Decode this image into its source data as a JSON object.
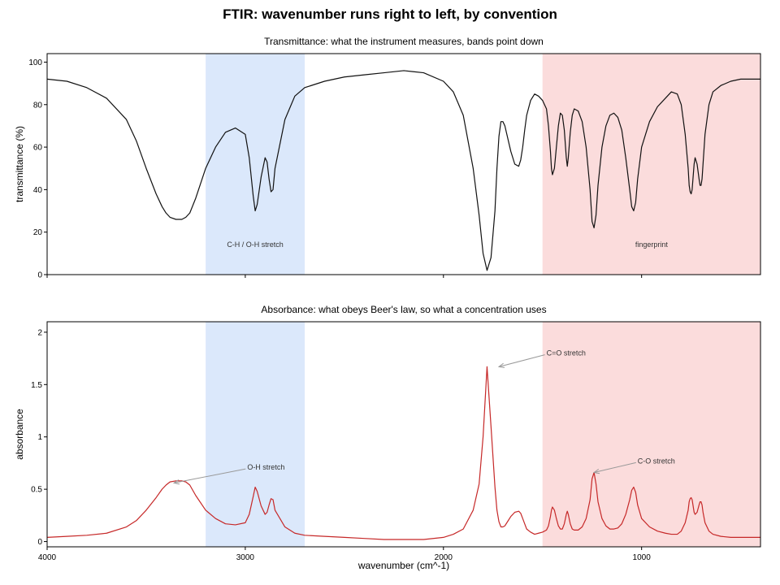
{
  "figure_title": "FTIR: wavenumber runs right to left, by convention",
  "chart_data": [
    {
      "type": "line",
      "title": "Transmittance: what the instrument measures, bands point down",
      "xlabel": "",
      "ylabel": "transmittance (%)",
      "xlim": [
        4000,
        400
      ],
      "x_reversed": true,
      "ylim": [
        0,
        104
      ],
      "yticks": [
        0,
        20,
        40,
        60,
        80,
        100
      ],
      "ytick_labels": [
        "0",
        "20",
        "40",
        "60",
        "80",
        "100"
      ],
      "xticks": [
        4000,
        3000,
        2000,
        1000
      ],
      "line_color": "#111111",
      "grid": false,
      "regions": [
        {
          "label": "C-H / O-H stretch",
          "x0": 3200,
          "x1": 2700,
          "color": "#dbe8fb"
        },
        {
          "label": "fingerprint",
          "x0": 1500,
          "x1": 400,
          "color": "#fbdcdc"
        }
      ],
      "series": [
        {
          "x": [
            4000,
            3900,
            3800,
            3700,
            3600,
            3550,
            3500,
            3450,
            3420,
            3400,
            3380,
            3350,
            3320,
            3300,
            3280,
            3250,
            3200,
            3150,
            3100,
            3050,
            3000,
            2980,
            2960,
            2950,
            2940,
            2920,
            2900,
            2890,
            2880,
            2870,
            2860,
            2850,
            2800,
            2750,
            2700,
            2600,
            2500,
            2400,
            2300,
            2200,
            2100,
            2000,
            1950,
            1900,
            1850,
            1820,
            1800,
            1780,
            1760,
            1740,
            1730,
            1720,
            1710,
            1700,
            1690,
            1680,
            1660,
            1640,
            1620,
            1610,
            1600,
            1590,
            1580,
            1560,
            1540,
            1520,
            1500,
            1480,
            1470,
            1460,
            1455,
            1450,
            1440,
            1430,
            1420,
            1410,
            1400,
            1390,
            1380,
            1375,
            1370,
            1360,
            1350,
            1340,
            1320,
            1300,
            1280,
            1260,
            1250,
            1240,
            1230,
            1220,
            1200,
            1180,
            1160,
            1140,
            1120,
            1100,
            1080,
            1060,
            1050,
            1040,
            1030,
            1020,
            1000,
            960,
            920,
            880,
            850,
            820,
            800,
            780,
            765,
            760,
            755,
            750,
            745,
            740,
            735,
            730,
            720,
            710,
            705,
            700,
            695,
            690,
            680,
            660,
            640,
            600,
            550,
            500,
            450,
            400
          ],
          "y": [
            92,
            91,
            88,
            83,
            73,
            63,
            50,
            38,
            32,
            29,
            27,
            26,
            26,
            27,
            29,
            36,
            50,
            60,
            67,
            69,
            66,
            55,
            37,
            30,
            33,
            46,
            55,
            53,
            45,
            39,
            40,
            50,
            73,
            84,
            88,
            91,
            93,
            94,
            95,
            96,
            95,
            91,
            86,
            75,
            50,
            28,
            10,
            2,
            8,
            30,
            50,
            65,
            72,
            72,
            70,
            66,
            58,
            52,
            51,
            54,
            60,
            68,
            75,
            82,
            85,
            84,
            82,
            78,
            70,
            58,
            50,
            47,
            50,
            60,
            70,
            76,
            75,
            68,
            55,
            51,
            55,
            67,
            75,
            78,
            77,
            72,
            60,
            40,
            25,
            22,
            28,
            42,
            60,
            70,
            75,
            76,
            74,
            68,
            55,
            40,
            32,
            30,
            34,
            45,
            60,
            72,
            79,
            83,
            86,
            85,
            80,
            66,
            50,
            42,
            39,
            38,
            40,
            46,
            52,
            55,
            52,
            45,
            42,
            42,
            45,
            52,
            66,
            80,
            86,
            89,
            91,
            92,
            92,
            92
          ]
        }
      ]
    },
    {
      "type": "line",
      "title": "Absorbance: what obeys Beer's law, so what a concentration uses",
      "xlabel": "wavenumber (cm^-1)",
      "ylabel": "absorbance",
      "xlim": [
        4000,
        400
      ],
      "x_reversed": true,
      "ylim": [
        -0.05,
        2.1
      ],
      "yticks": [
        0,
        0.5,
        1,
        1.5,
        2
      ],
      "ytick_labels": [
        "0",
        "0.5",
        "1",
        "1.5",
        "2"
      ],
      "xticks": [
        4000,
        3000,
        2000,
        1000
      ],
      "xtick_labels": [
        "4000",
        "3000",
        "2000",
        "1000"
      ],
      "line_color": "#c62828",
      "grid": false,
      "regions": [
        {
          "x0": 3200,
          "x1": 2700,
          "color": "#dbe8fb"
        },
        {
          "x0": 1500,
          "x1": 400,
          "color": "#fbdcdc"
        }
      ],
      "annotations": [
        {
          "text": "O-H stretch",
          "x": 3360,
          "y": 0.56,
          "text_x": 2990,
          "text_y": 0.71
        },
        {
          "text": "C=O stretch",
          "x": 1720,
          "y": 1.67,
          "text_x": 1480,
          "text_y": 1.8
        },
        {
          "text": "C-O stretch",
          "x": 1240,
          "y": 0.66,
          "text_x": 1020,
          "text_y": 0.77
        }
      ],
      "series": [
        {
          "x": [
            4000,
            3900,
            3800,
            3700,
            3600,
            3550,
            3500,
            3450,
            3420,
            3400,
            3380,
            3350,
            3320,
            3300,
            3280,
            3250,
            3200,
            3150,
            3100,
            3050,
            3000,
            2980,
            2960,
            2950,
            2940,
            2920,
            2900,
            2890,
            2880,
            2870,
            2860,
            2850,
            2800,
            2750,
            2700,
            2600,
            2500,
            2400,
            2300,
            2200,
            2100,
            2000,
            1950,
            1900,
            1850,
            1820,
            1800,
            1780,
            1760,
            1740,
            1730,
            1720,
            1710,
            1700,
            1690,
            1680,
            1660,
            1640,
            1620,
            1610,
            1600,
            1590,
            1580,
            1560,
            1540,
            1520,
            1500,
            1480,
            1470,
            1460,
            1455,
            1450,
            1440,
            1430,
            1420,
            1410,
            1400,
            1390,
            1380,
            1375,
            1370,
            1360,
            1350,
            1340,
            1320,
            1300,
            1280,
            1260,
            1250,
            1240,
            1230,
            1220,
            1200,
            1180,
            1160,
            1140,
            1120,
            1100,
            1080,
            1060,
            1050,
            1040,
            1030,
            1020,
            1000,
            960,
            920,
            880,
            850,
            820,
            800,
            780,
            765,
            760,
            755,
            750,
            745,
            740,
            735,
            730,
            720,
            710,
            705,
            700,
            695,
            690,
            680,
            660,
            640,
            600,
            550,
            500,
            450,
            400
          ],
          "y": [
            0.04,
            0.05,
            0.06,
            0.08,
            0.14,
            0.2,
            0.3,
            0.42,
            0.5,
            0.54,
            0.57,
            0.58,
            0.58,
            0.57,
            0.54,
            0.44,
            0.3,
            0.22,
            0.17,
            0.16,
            0.18,
            0.26,
            0.43,
            0.52,
            0.48,
            0.34,
            0.26,
            0.28,
            0.35,
            0.41,
            0.4,
            0.3,
            0.14,
            0.08,
            0.06,
            0.05,
            0.04,
            0.03,
            0.02,
            0.02,
            0.02,
            0.04,
            0.07,
            0.12,
            0.3,
            0.55,
            1.0,
            1.67,
            1.1,
            0.52,
            0.3,
            0.19,
            0.14,
            0.14,
            0.15,
            0.18,
            0.24,
            0.28,
            0.29,
            0.27,
            0.22,
            0.17,
            0.12,
            0.09,
            0.07,
            0.08,
            0.09,
            0.11,
            0.15,
            0.24,
            0.3,
            0.33,
            0.3,
            0.22,
            0.15,
            0.12,
            0.12,
            0.17,
            0.26,
            0.29,
            0.26,
            0.17,
            0.12,
            0.11,
            0.11,
            0.14,
            0.22,
            0.4,
            0.6,
            0.66,
            0.55,
            0.38,
            0.22,
            0.15,
            0.12,
            0.12,
            0.13,
            0.17,
            0.26,
            0.4,
            0.49,
            0.52,
            0.47,
            0.35,
            0.22,
            0.14,
            0.1,
            0.08,
            0.07,
            0.07,
            0.1,
            0.18,
            0.3,
            0.38,
            0.41,
            0.42,
            0.4,
            0.34,
            0.28,
            0.26,
            0.28,
            0.35,
            0.38,
            0.38,
            0.35,
            0.28,
            0.18,
            0.1,
            0.07,
            0.05,
            0.04,
            0.04,
            0.04,
            0.04
          ]
        }
      ]
    }
  ]
}
